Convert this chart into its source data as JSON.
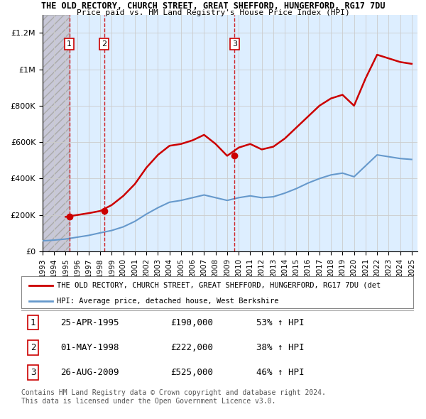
{
  "title1": "THE OLD RECTORY, CHURCH STREET, GREAT SHEFFORD, HUNGERFORD, RG17 7DU",
  "title2": "Price paid vs. HM Land Registry's House Price Index (HPI)",
  "xlim": [
    1993.0,
    2025.5
  ],
  "ylim": [
    0,
    1300000
  ],
  "yticks": [
    0,
    200000,
    400000,
    600000,
    800000,
    1000000,
    1200000
  ],
  "ytick_labels": [
    "£0",
    "£200K",
    "£400K",
    "£600K",
    "£800K",
    "£1M",
    "£1.2M"
  ],
  "xticks": [
    1993,
    1994,
    1995,
    1996,
    1997,
    1998,
    1999,
    2000,
    2001,
    2002,
    2003,
    2004,
    2005,
    2006,
    2007,
    2008,
    2009,
    2010,
    2011,
    2012,
    2013,
    2014,
    2015,
    2016,
    2017,
    2018,
    2019,
    2020,
    2021,
    2022,
    2023,
    2024,
    2025
  ],
  "hatch_end": 1995.33,
  "sale_dates": [
    1995.32,
    1998.33,
    2009.65
  ],
  "sale_prices": [
    190000,
    222000,
    525000
  ],
  "sale_labels": [
    "1",
    "2",
    "3"
  ],
  "red_line_color": "#cc0000",
  "blue_line_color": "#6699cc",
  "grid_color": "#cccccc",
  "bg_color": "#ddeeff",
  "legend_line1": "THE OLD RECTORY, CHURCH STREET, GREAT SHEFFORD, HUNGERFORD, RG17 7DU (det",
  "legend_line2": "HPI: Average price, detached house, West Berkshire",
  "table_data": [
    [
      "1",
      "25-APR-1995",
      "£190,000",
      "53% ↑ HPI"
    ],
    [
      "2",
      "01-MAY-1998",
      "£222,000",
      "38% ↑ HPI"
    ],
    [
      "3",
      "26-AUG-2009",
      "£525,000",
      "46% ↑ HPI"
    ]
  ],
  "footer": "Contains HM Land Registry data © Crown copyright and database right 2024.\nThis data is licensed under the Open Government Licence v3.0.",
  "hpi_years": [
    1993,
    1994,
    1995,
    1996,
    1997,
    1998,
    1999,
    2000,
    2001,
    2002,
    2003,
    2004,
    2005,
    2006,
    2007,
    2008,
    2009,
    2010,
    2011,
    2012,
    2013,
    2014,
    2015,
    2016,
    2017,
    2018,
    2019,
    2020,
    2021,
    2022,
    2023,
    2024,
    2025
  ],
  "hpi_values": [
    58000,
    62000,
    68000,
    78000,
    88000,
    102000,
    115000,
    135000,
    165000,
    205000,
    240000,
    270000,
    280000,
    295000,
    310000,
    295000,
    280000,
    295000,
    305000,
    295000,
    300000,
    320000,
    345000,
    375000,
    400000,
    420000,
    430000,
    410000,
    470000,
    530000,
    520000,
    510000,
    505000
  ],
  "property_years": [
    1993,
    1994,
    1995,
    1996,
    1997,
    1998,
    1999,
    2000,
    2001,
    2002,
    2003,
    2004,
    2005,
    2006,
    2007,
    2008,
    2009,
    2010,
    2011,
    2012,
    2013,
    2014,
    2015,
    2016,
    2017,
    2018,
    2019,
    2020,
    2021,
    2022,
    2023,
    2024,
    2025
  ],
  "property_values": [
    null,
    null,
    190000,
    200000,
    210000,
    222000,
    255000,
    305000,
    370000,
    460000,
    530000,
    580000,
    590000,
    610000,
    640000,
    590000,
    525000,
    570000,
    590000,
    560000,
    575000,
    620000,
    680000,
    740000,
    800000,
    840000,
    860000,
    800000,
    950000,
    1080000,
    1060000,
    1040000,
    1030000
  ]
}
